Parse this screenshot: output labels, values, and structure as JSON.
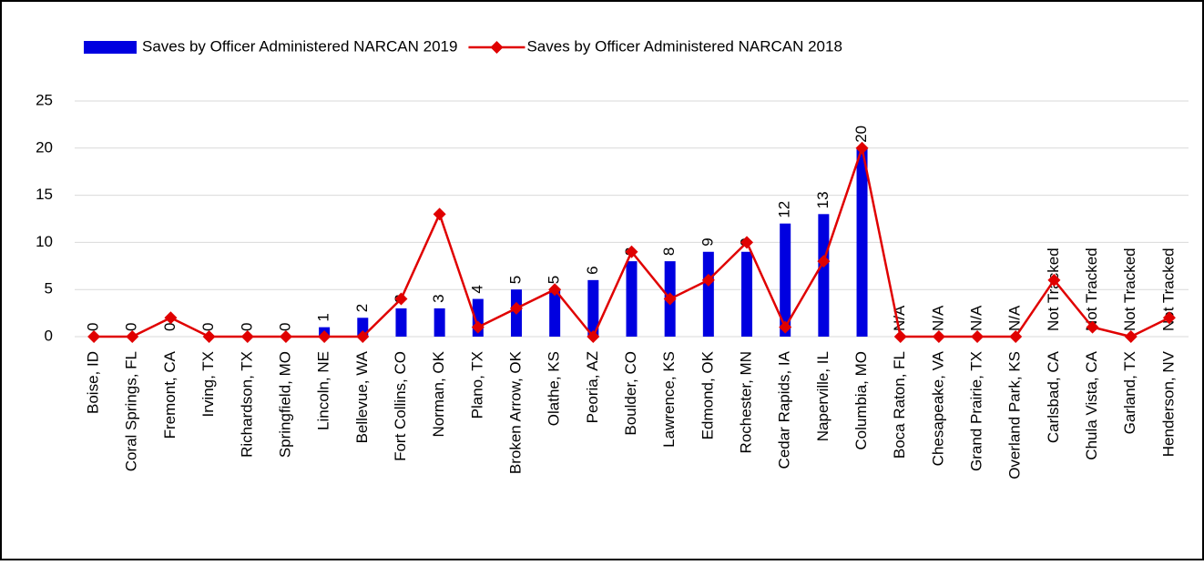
{
  "chart_data": {
    "type": "bar-line",
    "categories": [
      "Boise, ID",
      "Coral Springs, FL",
      "Fremont, CA",
      "Irving, TX",
      "Richardson, TX",
      "Springfield, MO",
      "Lincoln, NE",
      "Bellevue, WA",
      "Fort Collins, CO",
      "Norman, OK",
      "Plano, TX",
      "Broken Arrow, OK",
      "Olathe, KS",
      "Peoria, AZ",
      "Boulder, CO",
      "Lawrence, KS",
      "Edmond, OK",
      "Rochester, MN",
      "Cedar Rapids, IA",
      "Naperville, IL",
      "Columbia, MO",
      "Boca Raton, FL",
      "Chesapeake, VA",
      "Grand Prairie, TX",
      "Overland Park, KS",
      "Carlsbad, CA",
      "Chula Vista, CA",
      "Garland, TX",
      "Henderson, NV"
    ],
    "series": [
      {
        "name": "Saves by Officer Administered NARCAN 2019",
        "type": "bar",
        "color": "#0000e0",
        "values": [
          0,
          0,
          0,
          0,
          0,
          0,
          1,
          2,
          3,
          3,
          4,
          5,
          5,
          6,
          8,
          8,
          9,
          9,
          12,
          13,
          20,
          null,
          null,
          null,
          null,
          null,
          null,
          null,
          null
        ],
        "value_labels": [
          "0",
          "0",
          "0",
          "0",
          "0",
          "0",
          "1",
          "2",
          "3",
          "3",
          "4",
          "5",
          "5",
          "6",
          "8",
          "8",
          "9",
          "9",
          "12",
          "13",
          "20",
          "N/A",
          "N/A",
          "N/A",
          "N/A",
          "Not Tracked",
          "Not Tracked",
          "Not Tracked",
          "Not Tracked"
        ]
      },
      {
        "name": "Saves by Officer Administered NARCAN 2018",
        "type": "line",
        "color": "#e00000",
        "values": [
          0,
          0,
          2,
          0,
          0,
          0,
          0,
          0,
          4,
          13,
          1,
          3,
          5,
          0,
          9,
          4,
          6,
          10,
          1,
          8,
          20,
          0,
          0,
          0,
          0,
          6,
          1,
          0,
          2
        ]
      }
    ],
    "ylim": [
      0,
      25
    ],
    "yticks": [
      0,
      5,
      10,
      15,
      20,
      25
    ],
    "grid": true,
    "legend": "top"
  }
}
